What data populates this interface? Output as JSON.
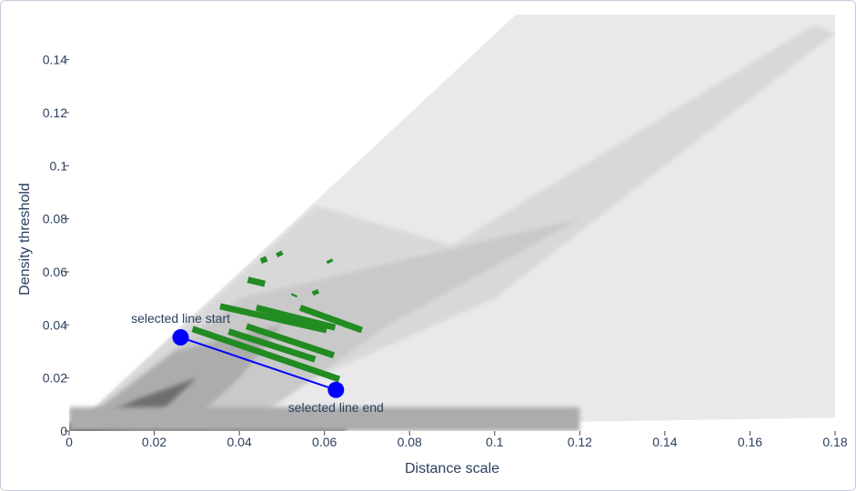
{
  "chart_data": {
    "type": "heatmap",
    "xlabel": "Distance scale",
    "ylabel": "Density threshold",
    "xlim": [
      0,
      0.18
    ],
    "ylim": [
      0,
      0.157
    ],
    "x_ticks": [
      "0",
      "0.02",
      "0.04",
      "0.06",
      "0.08",
      "0.1",
      "0.12",
      "0.14",
      "0.16",
      "0.18"
    ],
    "y_ticks": [
      "0",
      "0.02",
      "0.04",
      "0.06",
      "0.08",
      "0.1",
      "0.12",
      "0.14"
    ],
    "x_tick_values": [
      0,
      0.02,
      0.04,
      0.06,
      0.08,
      0.1,
      0.12,
      0.14,
      0.16,
      0.18
    ],
    "y_tick_values": [
      0,
      0.02,
      0.04,
      0.06,
      0.08,
      0.1,
      0.12,
      0.14
    ],
    "colorscale": [
      "#f5f5f5",
      "#000000"
    ],
    "density_regions": [
      {
        "level": 0.05,
        "polygon": [
          [
            0.0,
            0.0
          ],
          [
            0.105,
            0.157
          ],
          [
            0.18,
            0.157
          ],
          [
            0.18,
            0.005
          ],
          [
            0.06,
            0.002
          ]
        ]
      },
      {
        "level": 0.12,
        "polygon": [
          [
            0.0,
            0.0
          ],
          [
            0.058,
            0.085
          ],
          [
            0.09,
            0.07
          ],
          [
            0.175,
            0.153
          ],
          [
            0.18,
            0.15
          ],
          [
            0.1,
            0.05
          ],
          [
            0.03,
            0.0
          ]
        ]
      },
      {
        "level": 0.18,
        "polygon": [
          [
            0.0,
            0.0
          ],
          [
            0.04,
            0.05
          ],
          [
            0.08,
            0.065
          ],
          [
            0.12,
            0.08
          ],
          [
            0.075,
            0.04
          ],
          [
            0.04,
            0.0
          ]
        ]
      },
      {
        "level": 0.3,
        "polygon": [
          [
            0.0,
            0.0
          ],
          [
            0.025,
            0.03
          ],
          [
            0.05,
            0.04
          ],
          [
            0.04,
            0.02
          ],
          [
            0.03,
            0.005
          ],
          [
            0.01,
            0.0
          ]
        ]
      },
      {
        "level": 0.55,
        "polygon": [
          [
            0.0,
            0.0
          ],
          [
            0.016,
            0.012
          ],
          [
            0.03,
            0.02
          ],
          [
            0.02,
            0.005
          ],
          [
            0.012,
            0.0
          ]
        ]
      },
      {
        "level": 0.9,
        "polygon": [
          [
            0.0,
            0.0
          ],
          [
            0.008,
            0.005
          ],
          [
            0.018,
            0.008
          ],
          [
            0.012,
            0.002
          ],
          [
            0.006,
            0.0
          ]
        ]
      }
    ],
    "density_bands": [
      {
        "level": 0.85,
        "x": [
          0.0,
          0.065
        ],
        "y": [
          0.0,
          0.003
        ]
      },
      {
        "level": 0.3,
        "x": [
          0.0,
          0.12
        ],
        "y": [
          0.0,
          0.009
        ]
      }
    ],
    "highlight_segments": {
      "color": "#228b22",
      "segments": [
        [
          [
            0.0455,
            0.0655
          ],
          [
            0.046,
            0.0635
          ]
        ],
        [
          [
            0.0492,
            0.0675
          ],
          [
            0.0497,
            0.066
          ]
        ],
        [
          [
            0.0611,
            0.0645
          ],
          [
            0.0614,
            0.0635
          ]
        ],
        [
          [
            0.0528,
            0.0508
          ],
          [
            0.053,
            0.0515
          ]
        ],
        [
          [
            0.042,
            0.057
          ],
          [
            0.046,
            0.0555
          ]
        ],
        [
          [
            0.0577,
            0.053
          ],
          [
            0.0581,
            0.0515
          ]
        ],
        [
          [
            0.0355,
            0.047
          ],
          [
            0.0605,
            0.038
          ]
        ],
        [
          [
            0.044,
            0.0465
          ],
          [
            0.0625,
            0.039
          ]
        ],
        [
          [
            0.0543,
            0.0465
          ],
          [
            0.0688,
            0.038
          ]
        ],
        [
          [
            0.0417,
            0.0395
          ],
          [
            0.0622,
            0.0285
          ]
        ],
        [
          [
            0.0375,
            0.0375
          ],
          [
            0.0578,
            0.027
          ]
        ],
        [
          [
            0.029,
            0.0385
          ],
          [
            0.0635,
            0.0195
          ]
        ]
      ]
    },
    "selected_line": {
      "color": "#0000ff",
      "start": {
        "x": 0.0262,
        "y": 0.0353,
        "label": "selected line start"
      },
      "end": {
        "x": 0.0627,
        "y": 0.0155,
        "label": "selected line end"
      }
    }
  }
}
